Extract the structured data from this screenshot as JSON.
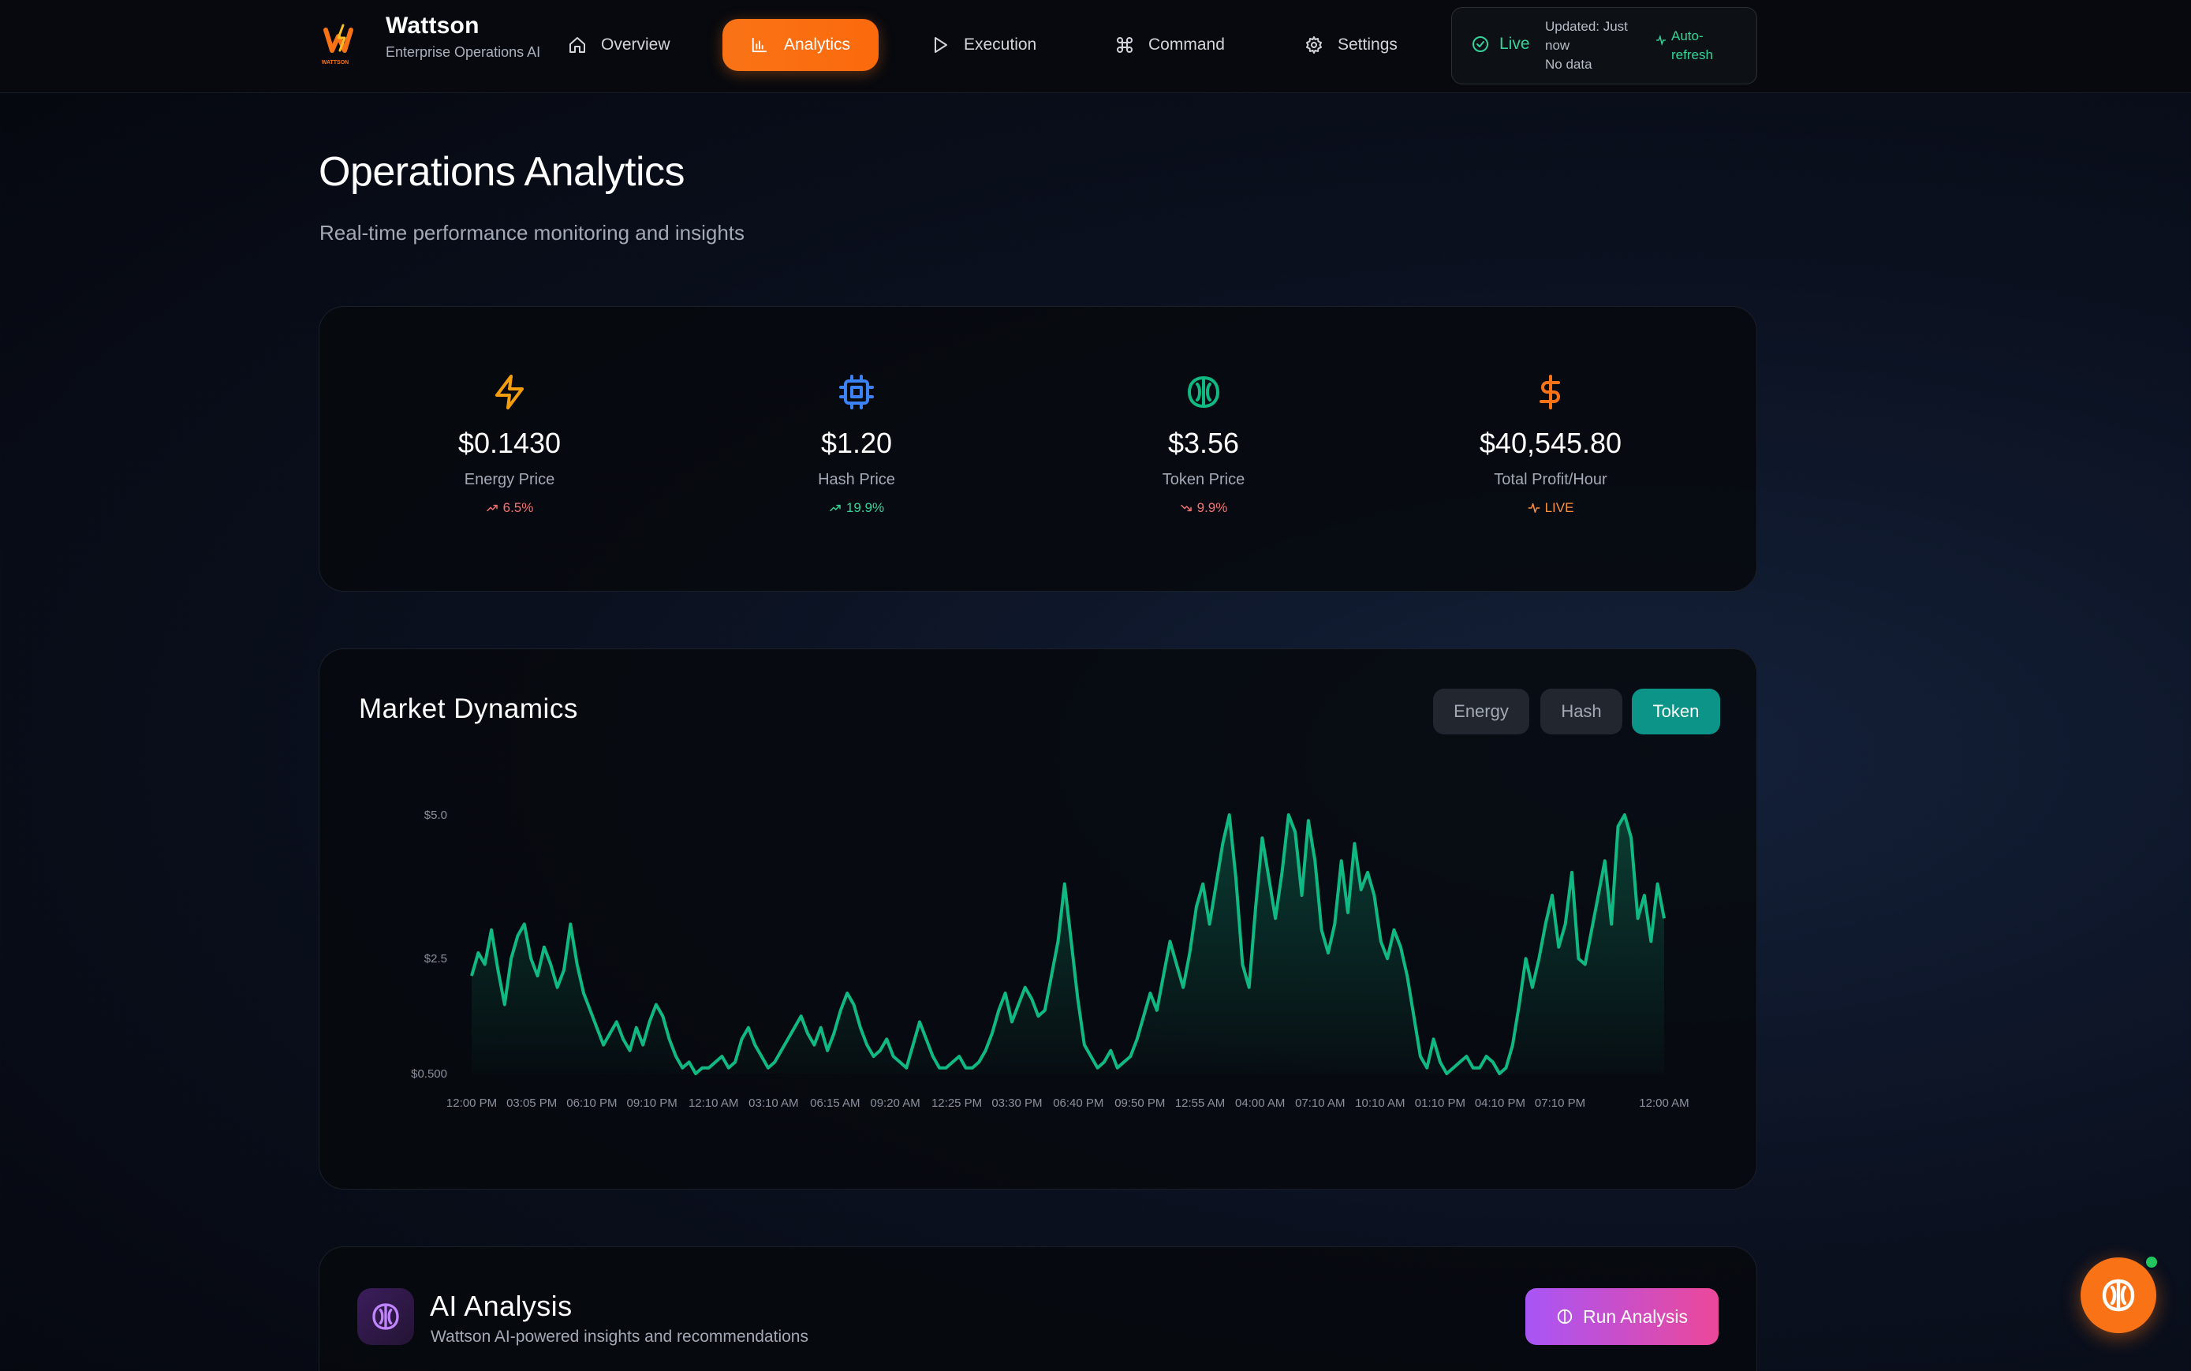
{
  "brand": {
    "name": "Wattson",
    "subtitle": "Enterprise Operations AI",
    "logo_text": "WATTSON"
  },
  "nav": {
    "items": [
      {
        "label": "Overview",
        "icon": "home-icon"
      },
      {
        "label": "Analytics",
        "icon": "bar-chart-icon",
        "active": true
      },
      {
        "label": "Execution",
        "icon": "play-icon"
      },
      {
        "label": "Command",
        "icon": "command-icon"
      },
      {
        "label": "Settings",
        "icon": "gear-icon"
      }
    ]
  },
  "status": {
    "live": "Live",
    "updated": "Updated: Just now",
    "data": "No data",
    "auto": "Auto-refresh"
  },
  "page": {
    "title": "Operations Analytics",
    "subtitle": "Real-time performance monitoring and insights"
  },
  "metrics": [
    {
      "icon": "lightning-icon",
      "value": "$0.1430",
      "label": "Energy Price",
      "delta": "6.5%",
      "trend": "up",
      "color": "#f59e0b",
      "delta_color": "#f87171"
    },
    {
      "icon": "cpu-icon",
      "value": "$1.20",
      "label": "Hash Price",
      "delta": "19.9%",
      "trend": "up",
      "color": "#3b82f6",
      "delta_color": "#34d399"
    },
    {
      "icon": "brain-icon",
      "value": "$3.56",
      "label": "Token Price",
      "delta": "9.9%",
      "trend": "down",
      "color": "#10b981",
      "delta_color": "#f87171"
    },
    {
      "icon": "dollar-icon",
      "value": "$40,545.80",
      "label": "Total Profit/Hour",
      "delta": "LIVE",
      "trend": "live",
      "color": "#f97316",
      "delta_color": "#fb923c"
    }
  ],
  "market": {
    "title": "Market Dynamics",
    "toggles": [
      {
        "label": "Energy",
        "active": false
      },
      {
        "label": "Hash",
        "active": false
      },
      {
        "label": "Token",
        "active": true
      }
    ]
  },
  "chart_data": {
    "type": "area",
    "title": "",
    "xlabel": "",
    "ylabel": "",
    "ylim": [
      0.5,
      5.0
    ],
    "y_ticks": [
      "$5.0",
      "$2.5",
      "$0.500"
    ],
    "y_tick_values": [
      5.0,
      2.5,
      0.5
    ],
    "x_tick_labels": [
      "12:00 PM",
      "03:05 PM",
      "06:10 PM",
      "09:10 PM",
      "12:10 AM",
      "03:10 AM",
      "06:15 AM",
      "09:20 AM",
      "12:25 PM",
      "03:30 PM",
      "06:40 PM",
      "09:50 PM",
      "12:55 AM",
      "04:00 AM",
      "07:10 AM",
      "10:10 AM",
      "01:10 PM",
      "04:10 PM",
      "07:10 PM",
      "12:00 AM"
    ],
    "x_tick_positions": [
      0,
      0.0504,
      0.1008,
      0.1512,
      0.2028,
      0.2532,
      0.3048,
      0.3552,
      0.4068,
      0.4573,
      0.5088,
      0.5604,
      0.6108,
      0.6612,
      0.7115,
      0.7618,
      0.8121,
      0.8624,
      0.9127,
      1.0
    ],
    "grid": false,
    "legend": "none",
    "series": [
      {
        "color": "#10b981",
        "values": [
          2.2,
          2.6,
          2.4,
          3.0,
          2.3,
          1.7,
          2.5,
          2.9,
          3.1,
          2.5,
          2.2,
          2.7,
          2.4,
          2.0,
          2.3,
          3.1,
          2.4,
          1.9,
          1.6,
          1.3,
          1.0,
          1.2,
          1.4,
          1.1,
          0.9,
          1.3,
          1.0,
          1.4,
          1.7,
          1.5,
          1.1,
          0.8,
          0.6,
          0.7,
          0.5,
          0.6,
          0.6,
          0.7,
          0.8,
          0.6,
          0.7,
          1.1,
          1.3,
          1.0,
          0.8,
          0.6,
          0.7,
          0.9,
          1.1,
          1.3,
          1.5,
          1.2,
          1.0,
          1.3,
          0.9,
          1.2,
          1.6,
          1.9,
          1.7,
          1.3,
          1.0,
          0.8,
          0.9,
          1.1,
          0.8,
          0.7,
          0.6,
          1.0,
          1.4,
          1.1,
          0.8,
          0.6,
          0.6,
          0.7,
          0.8,
          0.6,
          0.6,
          0.7,
          0.9,
          1.2,
          1.6,
          1.9,
          1.4,
          1.7,
          2.0,
          1.8,
          1.5,
          1.6,
          2.2,
          2.8,
          3.8,
          2.8,
          1.8,
          1.0,
          0.8,
          0.6,
          0.7,
          0.9,
          0.6,
          0.7,
          0.8,
          1.1,
          1.5,
          1.9,
          1.6,
          2.2,
          2.8,
          2.4,
          2.0,
          2.6,
          3.4,
          3.8,
          3.1,
          3.8,
          4.5,
          5.0,
          3.9,
          2.4,
          2.0,
          3.4,
          4.6,
          3.9,
          3.2,
          4.0,
          5.0,
          4.7,
          3.6,
          4.9,
          4.2,
          3.0,
          2.6,
          3.1,
          4.2,
          3.3,
          4.5,
          3.7,
          4.0,
          3.6,
          2.8,
          2.5,
          3.0,
          2.7,
          2.2,
          1.5,
          0.8,
          0.6,
          1.1,
          0.7,
          0.5,
          0.6,
          0.7,
          0.8,
          0.6,
          0.6,
          0.8,
          0.7,
          0.5,
          0.6,
          1.0,
          1.7,
          2.5,
          2.0,
          2.5,
          3.1,
          3.6,
          2.7,
          3.1,
          4.0,
          2.5,
          2.4,
          3.0,
          3.6,
          4.2,
          3.1,
          4.8,
          5.0,
          4.6,
          3.2,
          3.6,
          2.8,
          3.8,
          3.2
        ]
      }
    ]
  },
  "ai": {
    "title": "AI Analysis",
    "subtitle": "Wattson AI-powered insights and recommendations",
    "button": "Run Analysis"
  }
}
